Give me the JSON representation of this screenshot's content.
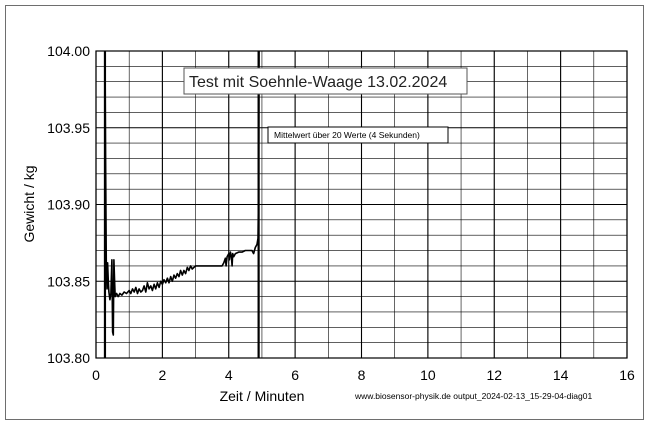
{
  "chart_data": {
    "type": "line",
    "title": "Test mit Soehnle-Waage  13.02.2024",
    "annotation": "Mittelwert über 20  Werte (4 Sekunden)",
    "xlabel": "Zeit / Minuten",
    "ylabel": "Gewicht / kg",
    "source_label": "www.biosensor-physik.de  output_2024-02-13_15-29-04-diag01",
    "xlim": [
      0,
      16
    ],
    "ylim": [
      103.8,
      104.0
    ],
    "x_ticks": [
      0,
      2,
      4,
      6,
      8,
      10,
      12,
      14,
      16
    ],
    "y_ticks": [
      "103.80",
      "103.85",
      "103.90",
      "103.95",
      "104.00"
    ],
    "y_tick_values": [
      103.8,
      103.85,
      103.9,
      103.95,
      104.0
    ],
    "x_minor_step": 1,
    "y_minor_step": 0.01,
    "grid": true,
    "line_color": "#000000",
    "vertical_markers": [
      0.27,
      4.9
    ],
    "series": [
      {
        "points": [
          [
            0.27,
            104.0
          ],
          [
            0.29,
            103.93
          ],
          [
            0.31,
            103.86
          ],
          [
            0.33,
            103.845
          ],
          [
            0.35,
            103.862
          ],
          [
            0.37,
            103.85
          ],
          [
            0.39,
            103.843
          ],
          [
            0.42,
            103.838
          ],
          [
            0.45,
            103.842
          ],
          [
            0.48,
            103.864
          ],
          [
            0.5,
            103.817
          ],
          [
            0.52,
            103.815
          ],
          [
            0.54,
            103.864
          ],
          [
            0.56,
            103.85
          ],
          [
            0.58,
            103.84
          ],
          [
            0.62,
            103.842
          ],
          [
            0.67,
            103.84
          ],
          [
            0.72,
            103.842
          ],
          [
            0.78,
            103.841
          ],
          [
            0.85,
            103.843
          ],
          [
            0.92,
            103.842
          ],
          [
            1.0,
            103.844
          ],
          [
            1.05,
            103.842
          ],
          [
            1.1,
            103.845
          ],
          [
            1.15,
            103.843
          ],
          [
            1.2,
            103.846
          ],
          [
            1.25,
            103.842
          ],
          [
            1.3,
            103.845
          ],
          [
            1.35,
            103.843
          ],
          [
            1.4,
            103.844
          ],
          [
            1.45,
            103.847
          ],
          [
            1.5,
            103.843
          ],
          [
            1.55,
            103.849
          ],
          [
            1.6,
            103.845
          ],
          [
            1.65,
            103.847
          ],
          [
            1.7,
            103.844
          ],
          [
            1.75,
            103.848
          ],
          [
            1.8,
            103.845
          ],
          [
            1.85,
            103.849
          ],
          [
            1.9,
            103.846
          ],
          [
            1.95,
            103.85
          ],
          [
            2.0,
            103.848
          ],
          [
            2.05,
            103.851
          ],
          [
            2.1,
            103.849
          ],
          [
            2.15,
            103.852
          ],
          [
            2.2,
            103.849
          ],
          [
            2.25,
            103.853
          ],
          [
            2.3,
            103.85
          ],
          [
            2.35,
            103.854
          ],
          [
            2.4,
            103.852
          ],
          [
            2.45,
            103.855
          ],
          [
            2.5,
            103.853
          ],
          [
            2.55,
            103.857
          ],
          [
            2.6,
            103.854
          ],
          [
            2.65,
            103.857
          ],
          [
            2.7,
            103.855
          ],
          [
            2.75,
            103.859
          ],
          [
            2.8,
            103.857
          ],
          [
            2.85,
            103.86
          ],
          [
            2.9,
            103.858
          ],
          [
            3.0,
            103.86
          ],
          [
            3.2,
            103.86
          ],
          [
            3.4,
            103.86
          ],
          [
            3.6,
            103.86
          ],
          [
            3.8,
            103.86
          ],
          [
            3.85,
            103.862
          ],
          [
            3.9,
            103.865
          ],
          [
            3.92,
            103.86
          ],
          [
            3.95,
            103.866
          ],
          [
            4.0,
            103.868
          ],
          [
            4.02,
            103.864
          ],
          [
            4.05,
            103.869
          ],
          [
            4.08,
            103.866
          ],
          [
            4.1,
            103.86
          ],
          [
            4.12,
            103.868
          ],
          [
            4.15,
            103.866
          ],
          [
            4.2,
            103.868
          ],
          [
            4.3,
            103.869
          ],
          [
            4.4,
            103.869
          ],
          [
            4.5,
            103.87
          ],
          [
            4.6,
            103.87
          ],
          [
            4.7,
            103.87
          ],
          [
            4.75,
            103.868
          ],
          [
            4.8,
            103.872
          ],
          [
            4.85,
            103.874
          ],
          [
            4.88,
            103.878
          ],
          [
            4.9,
            103.91
          ],
          [
            4.91,
            104.0
          ]
        ]
      }
    ]
  }
}
